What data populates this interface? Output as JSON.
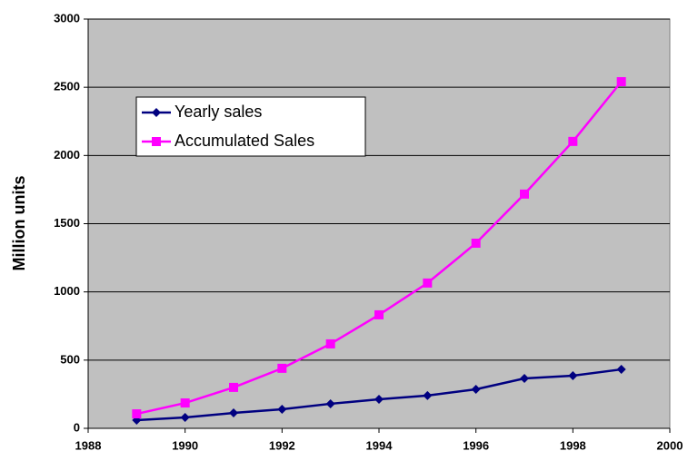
{
  "chart_data": {
    "type": "line",
    "y_label": "Million units",
    "x": [
      1989,
      1990,
      1991,
      1992,
      1993,
      1994,
      1995,
      1996,
      1997,
      1998,
      1999
    ],
    "series": [
      {
        "name": "Yearly sales",
        "color": "#000080",
        "marker": "diamond",
        "values": [
          60,
          80,
          113,
          140,
          180,
          213,
          240,
          286,
          366,
          386,
          432
        ]
      },
      {
        "name": "Accumulated Sales",
        "color": "#ff00ff",
        "marker": "square",
        "values": [
          106,
          186,
          300,
          440,
          619,
          832,
          1065,
          1357,
          1717,
          2103,
          2541
        ]
      }
    ],
    "xlim": [
      1988,
      2000
    ],
    "xticks": [
      1988,
      1990,
      1992,
      1994,
      1996,
      1998,
      2000
    ],
    "ylim": [
      0,
      3000
    ],
    "yticks": [
      0,
      500,
      1000,
      1500,
      2000,
      2500,
      3000
    ],
    "grid": true,
    "legend": "upper-left"
  }
}
